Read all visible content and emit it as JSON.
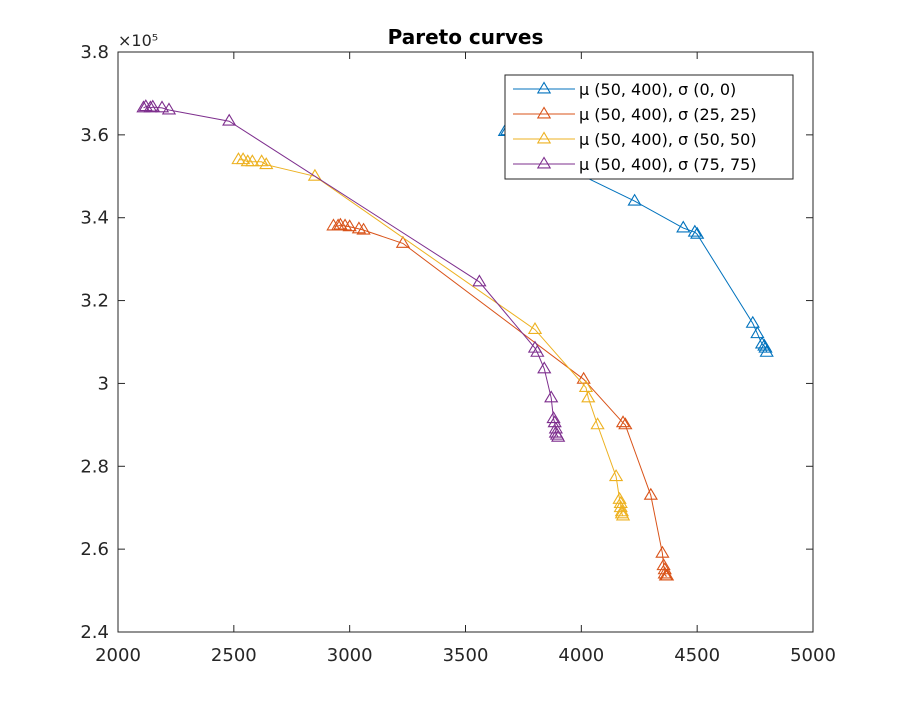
{
  "chart_data": {
    "type": "line",
    "title": "Pareto curves",
    "xlabel": "",
    "ylabel": "",
    "xlim": [
      2000,
      5000
    ],
    "ylim": [
      240000,
      380000
    ],
    "x_ticks": [
      2000,
      2500,
      3000,
      3500,
      4000,
      4500,
      5000
    ],
    "y_ticks": [
      240000,
      260000,
      280000,
      300000,
      320000,
      340000,
      360000,
      380000
    ],
    "x_tick_labels": [
      "2000",
      "2500",
      "3000",
      "3500",
      "4000",
      "4500",
      "5000"
    ],
    "y_tick_labels": [
      "2.4",
      "2.6",
      "2.8",
      "3",
      "3.2",
      "3.4",
      "3.6",
      "3.8"
    ],
    "y_exponent_label": "×10⁵",
    "marker": "triangle",
    "grid": false,
    "legend_position": "top-right",
    "series": [
      {
        "name": "μ (50, 400), σ (0, 0)",
        "color": "#0072BD",
        "points": [
          [
            3670,
            360800
          ],
          [
            3680,
            361000
          ],
          [
            3700,
            360300
          ],
          [
            3780,
            357500
          ],
          [
            3900,
            353000
          ],
          [
            4230,
            344000
          ],
          [
            4440,
            337500
          ],
          [
            4490,
            336500
          ],
          [
            4500,
            336000
          ],
          [
            4740,
            314500
          ],
          [
            4760,
            312000
          ],
          [
            4780,
            309500
          ],
          [
            4790,
            309000
          ],
          [
            4795,
            308500
          ],
          [
            4800,
            307500
          ]
        ]
      },
      {
        "name": "μ (50, 400), σ (25, 25)",
        "color": "#D95319",
        "points": [
          [
            2930,
            338000
          ],
          [
            2950,
            338000
          ],
          [
            2960,
            338200
          ],
          [
            2980,
            338000
          ],
          [
            3000,
            337800
          ],
          [
            3040,
            337300
          ],
          [
            3060,
            337000
          ],
          [
            3230,
            333800
          ],
          [
            4010,
            301000
          ],
          [
            4180,
            290500
          ],
          [
            4190,
            290000
          ],
          [
            4300,
            273000
          ],
          [
            4350,
            259000
          ],
          [
            4355,
            256000
          ],
          [
            4360,
            255000
          ],
          [
            4360,
            254000
          ],
          [
            4365,
            253500
          ],
          [
            4370,
            253500
          ]
        ]
      },
      {
        "name": "μ (50, 400), σ (50, 50)",
        "color": "#EDB120",
        "points": [
          [
            2520,
            354000
          ],
          [
            2540,
            354000
          ],
          [
            2560,
            353500
          ],
          [
            2580,
            353500
          ],
          [
            2620,
            353500
          ],
          [
            2640,
            352800
          ],
          [
            2850,
            350000
          ],
          [
            3800,
            313000
          ],
          [
            4020,
            299000
          ],
          [
            4030,
            296500
          ],
          [
            4070,
            290000
          ],
          [
            4150,
            277500
          ],
          [
            4165,
            272000
          ],
          [
            4170,
            271000
          ],
          [
            4170,
            270000
          ],
          [
            4175,
            269000
          ],
          [
            4175,
            268500
          ],
          [
            4180,
            268000
          ]
        ]
      },
      {
        "name": "μ (50, 400), σ (75, 75)",
        "color": "#7E2F8E",
        "points": [
          [
            2110,
            366500
          ],
          [
            2120,
            366800
          ],
          [
            2140,
            366500
          ],
          [
            2150,
            366700
          ],
          [
            2190,
            366500
          ],
          [
            2220,
            366000
          ],
          [
            2480,
            363300
          ],
          [
            3560,
            324500
          ],
          [
            3800,
            308500
          ],
          [
            3810,
            307500
          ],
          [
            3840,
            303500
          ],
          [
            3870,
            296500
          ],
          [
            3880,
            291500
          ],
          [
            3885,
            290500
          ],
          [
            3890,
            289000
          ],
          [
            3890,
            288000
          ],
          [
            3895,
            287500
          ],
          [
            3900,
            287000
          ]
        ]
      }
    ]
  }
}
